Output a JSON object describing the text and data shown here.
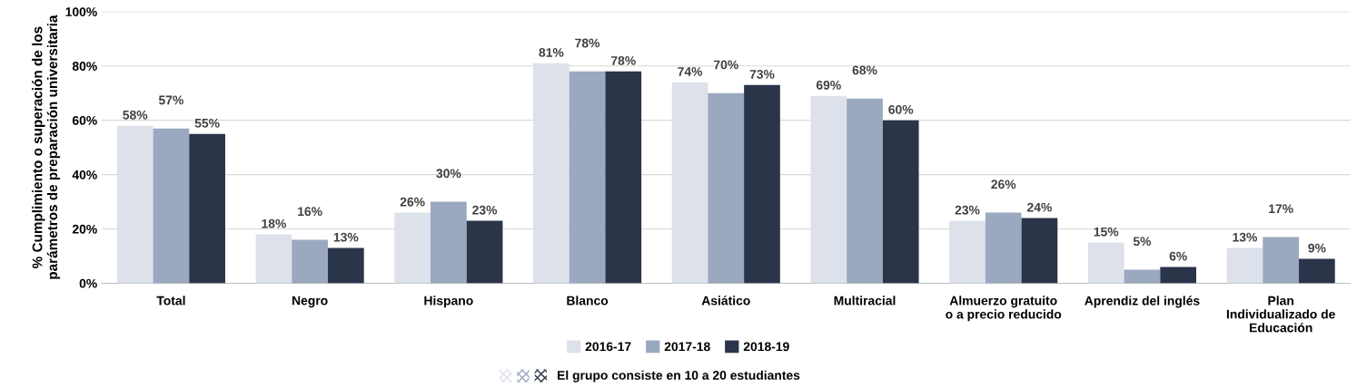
{
  "chart_data": {
    "type": "bar",
    "ylabel": "% Cumplimiento o superación de los\nparámetros de preparación universitaria",
    "categories": [
      "Total",
      "Negro",
      "Hispano",
      "Blanco",
      "Asiático",
      "Multiracial",
      "Almuerzo gratuito\no a precio reducido",
      "Aprendiz del inglés",
      "Plan\nIndividualizado de\nEducación"
    ],
    "series": [
      {
        "name": "2016-17",
        "color": "#dde1ea",
        "values": [
          58,
          18,
          26,
          81,
          74,
          69,
          23,
          15,
          13
        ],
        "value_labels": [
          "58%",
          "18%",
          "26%",
          "81%",
          "74%",
          "69%",
          "23%",
          "15%",
          "13%"
        ]
      },
      {
        "name": "2017-18",
        "color": "#9aa8c0",
        "values": [
          57,
          16,
          30,
          78,
          70,
          68,
          26,
          5,
          17
        ],
        "value_labels": [
          "57%",
          "16%",
          "30%",
          "78%",
          "70%",
          "68%",
          "26%",
          "5%",
          "17%"
        ]
      },
      {
        "name": "2018-19",
        "color": "#2b3549",
        "values": [
          55,
          13,
          23,
          78,
          73,
          60,
          24,
          6,
          9
        ],
        "value_labels": [
          "55%",
          "13%",
          "23%",
          "78%",
          "73%",
          "60%",
          "24%",
          "6%",
          "9%"
        ]
      }
    ],
    "ylim": [
      0,
      100
    ],
    "yticks": [
      {
        "value": 0,
        "label": "0%"
      },
      {
        "value": 20,
        "label": "20%"
      },
      {
        "value": 40,
        "label": "40%"
      },
      {
        "value": 60,
        "label": "60%"
      },
      {
        "value": 80,
        "label": "80%"
      },
      {
        "value": 100,
        "label": "100%"
      }
    ],
    "grid": "y",
    "legend": "bottom",
    "annotations": [
      "El grupo consiste en 10 a 20 estudiantes"
    ]
  }
}
